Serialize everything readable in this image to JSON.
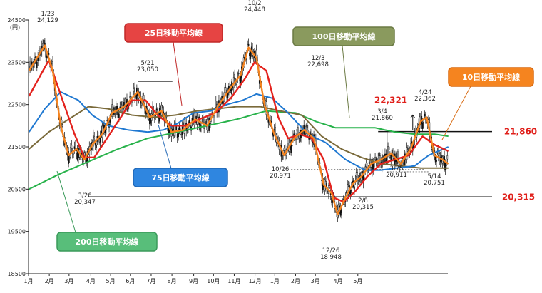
{
  "chart_data": {
    "type": "candlestick",
    "y_unit": "(円)",
    "ylim": [
      18500,
      24500
    ],
    "y_ticks": [
      18500,
      19500,
      20500,
      21500,
      22500,
      23500,
      24500
    ],
    "x_ticks": [
      "1月",
      "2月",
      "3月",
      "4月",
      "5月",
      "6月",
      "7月",
      "8月",
      "9月",
      "10月",
      "11月",
      "12月",
      "1月",
      "2月",
      "3月",
      "4月",
      "5月"
    ],
    "series_colors": {
      "ma10": "#f5841f",
      "ma25": "#e3221d",
      "ma75": "#1f78d1",
      "ma100": "#7a6a3a",
      "ma200": "#27b24a",
      "candles": "#111111"
    },
    "series_labels": [
      {
        "key": "ma25",
        "label": "25日移動平均線",
        "bg": "#e64443",
        "border": "#c02828"
      },
      {
        "key": "ma100",
        "label": "100日移動平均線",
        "bg": "#8a9a5e",
        "border": "#6b7a44"
      },
      {
        "key": "ma10",
        "label": "10日移動平均線",
        "bg": "#f5841f",
        "border": "#d86a10"
      },
      {
        "key": "ma75",
        "label": "75日移動平均線",
        "bg": "#2f86e0",
        "border": "#1f66b5"
      },
      {
        "key": "ma200",
        "label": "200日移動平均線",
        "bg": "#58be7a",
        "border": "#3a9a5a"
      }
    ],
    "annotations": [
      {
        "date": "1/23",
        "value": "24,129"
      },
      {
        "date": "3/26",
        "value": "20,347"
      },
      {
        "date": "5/21",
        "value": "23,050"
      },
      {
        "date": "10/2",
        "value": "24,448"
      },
      {
        "date": "10/26",
        "value": "20,971"
      },
      {
        "date": "12/3",
        "value": "22,698"
      },
      {
        "date": "12/26",
        "value": "18,948"
      },
      {
        "date": "2/8",
        "value": "20,315"
      },
      {
        "date": "3/4",
        "value": "21,860"
      },
      {
        "date": "3/25",
        "value": "20,911"
      },
      {
        "date": "4/24",
        "value": "22,362"
      },
      {
        "date": "5/14",
        "value": "20,751"
      }
    ],
    "levels": [
      {
        "label": "21,860",
        "value": 21860
      },
      {
        "label": "20,315",
        "value": 20315
      },
      {
        "label": "22,321",
        "value": 22321
      }
    ],
    "ma_anchor_points": {
      "ma10": [
        [
          0,
          23300
        ],
        [
          16,
          23900
        ],
        [
          24,
          23300
        ],
        [
          32,
          22000
        ],
        [
          40,
          21300
        ],
        [
          48,
          21450
        ],
        [
          56,
          21200
        ],
        [
          64,
          21550
        ],
        [
          74,
          21800
        ],
        [
          84,
          22300
        ],
        [
          96,
          22450
        ],
        [
          110,
          22800
        ],
        [
          122,
          22200
        ],
        [
          134,
          22350
        ],
        [
          144,
          21850
        ],
        [
          156,
          21900
        ],
        [
          168,
          22150
        ],
        [
          180,
          22000
        ],
        [
          192,
          22500
        ],
        [
          204,
          22900
        ],
        [
          214,
          23200
        ],
        [
          222,
          23850
        ],
        [
          230,
          23600
        ],
        [
          238,
          22500
        ],
        [
          248,
          21800
        ],
        [
          258,
          21300
        ],
        [
          268,
          21700
        ],
        [
          278,
          21900
        ],
        [
          288,
          21700
        ],
        [
          298,
          20600
        ],
        [
          306,
          20400
        ],
        [
          312,
          19900
        ],
        [
          320,
          20300
        ],
        [
          328,
          20650
        ],
        [
          336,
          20800
        ],
        [
          346,
          21100
        ],
        [
          356,
          21200
        ],
        [
          366,
          21350
        ],
        [
          376,
          21100
        ],
        [
          386,
          21450
        ],
        [
          396,
          22100
        ],
        [
          402,
          22200
        ],
        [
          410,
          21300
        ],
        [
          418,
          21200
        ],
        [
          424,
          21100
        ]
      ],
      "ma25": [
        [
          0,
          22700
        ],
        [
          20,
          23550
        ],
        [
          34,
          22600
        ],
        [
          46,
          21800
        ],
        [
          56,
          21250
        ],
        [
          66,
          21250
        ],
        [
          76,
          21600
        ],
        [
          90,
          22100
        ],
        [
          104,
          22600
        ],
        [
          118,
          22600
        ],
        [
          130,
          22250
        ],
        [
          144,
          22000
        ],
        [
          158,
          22000
        ],
        [
          172,
          22150
        ],
        [
          188,
          22300
        ],
        [
          204,
          22650
        ],
        [
          218,
          23100
        ],
        [
          228,
          23500
        ],
        [
          240,
          23300
        ],
        [
          252,
          22200
        ],
        [
          262,
          21700
        ],
        [
          274,
          21800
        ],
        [
          286,
          21700
        ],
        [
          298,
          21200
        ],
        [
          308,
          20300
        ],
        [
          318,
          20200
        ],
        [
          330,
          20450
        ],
        [
          342,
          20800
        ],
        [
          356,
          21100
        ],
        [
          370,
          21200
        ],
        [
          384,
          21300
        ],
        [
          398,
          21750
        ],
        [
          410,
          21550
        ],
        [
          424,
          21400
        ]
      ],
      "ma75": [
        [
          0,
          21850
        ],
        [
          16,
          22400
        ],
        [
          32,
          22800
        ],
        [
          50,
          22600
        ],
        [
          64,
          22250
        ],
        [
          80,
          22000
        ],
        [
          100,
          21900
        ],
        [
          120,
          21850
        ],
        [
          136,
          21900
        ],
        [
          150,
          22050
        ],
        [
          166,
          22300
        ],
        [
          184,
          22350
        ],
        [
          200,
          22500
        ],
        [
          216,
          22600
        ],
        [
          230,
          22750
        ],
        [
          246,
          22650
        ],
        [
          262,
          22300
        ],
        [
          282,
          21800
        ],
        [
          300,
          21600
        ],
        [
          320,
          21200
        ],
        [
          340,
          20950
        ],
        [
          356,
          20950
        ],
        [
          372,
          21000
        ],
        [
          390,
          21050
        ],
        [
          404,
          21300
        ],
        [
          424,
          21500
        ]
      ],
      "ma100": [
        [
          0,
          21450
        ],
        [
          20,
          21850
        ],
        [
          40,
          22150
        ],
        [
          60,
          22450
        ],
        [
          80,
          22400
        ],
        [
          104,
          22250
        ],
        [
          126,
          22200
        ],
        [
          148,
          22250
        ],
        [
          170,
          22350
        ],
        [
          190,
          22400
        ],
        [
          210,
          22450
        ],
        [
          234,
          22450
        ],
        [
          254,
          22350
        ],
        [
          276,
          22250
        ],
        [
          296,
          21750
        ],
        [
          316,
          21450
        ],
        [
          336,
          21250
        ],
        [
          356,
          21100
        ],
        [
          376,
          21050
        ],
        [
          396,
          21000
        ],
        [
          424,
          21000
        ]
      ],
      "ma200": [
        [
          0,
          20500
        ],
        [
          30,
          20850
        ],
        [
          60,
          21150
        ],
        [
          90,
          21450
        ],
        [
          120,
          21700
        ],
        [
          150,
          21850
        ],
        [
          180,
          22000
        ],
        [
          210,
          22150
        ],
        [
          240,
          22350
        ],
        [
          270,
          22300
        ],
        [
          290,
          22100
        ],
        [
          310,
          21950
        ],
        [
          330,
          21950
        ],
        [
          350,
          21950
        ],
        [
          370,
          21850
        ],
        [
          390,
          21800
        ],
        [
          410,
          21800
        ],
        [
          424,
          21750
        ]
      ]
    }
  }
}
